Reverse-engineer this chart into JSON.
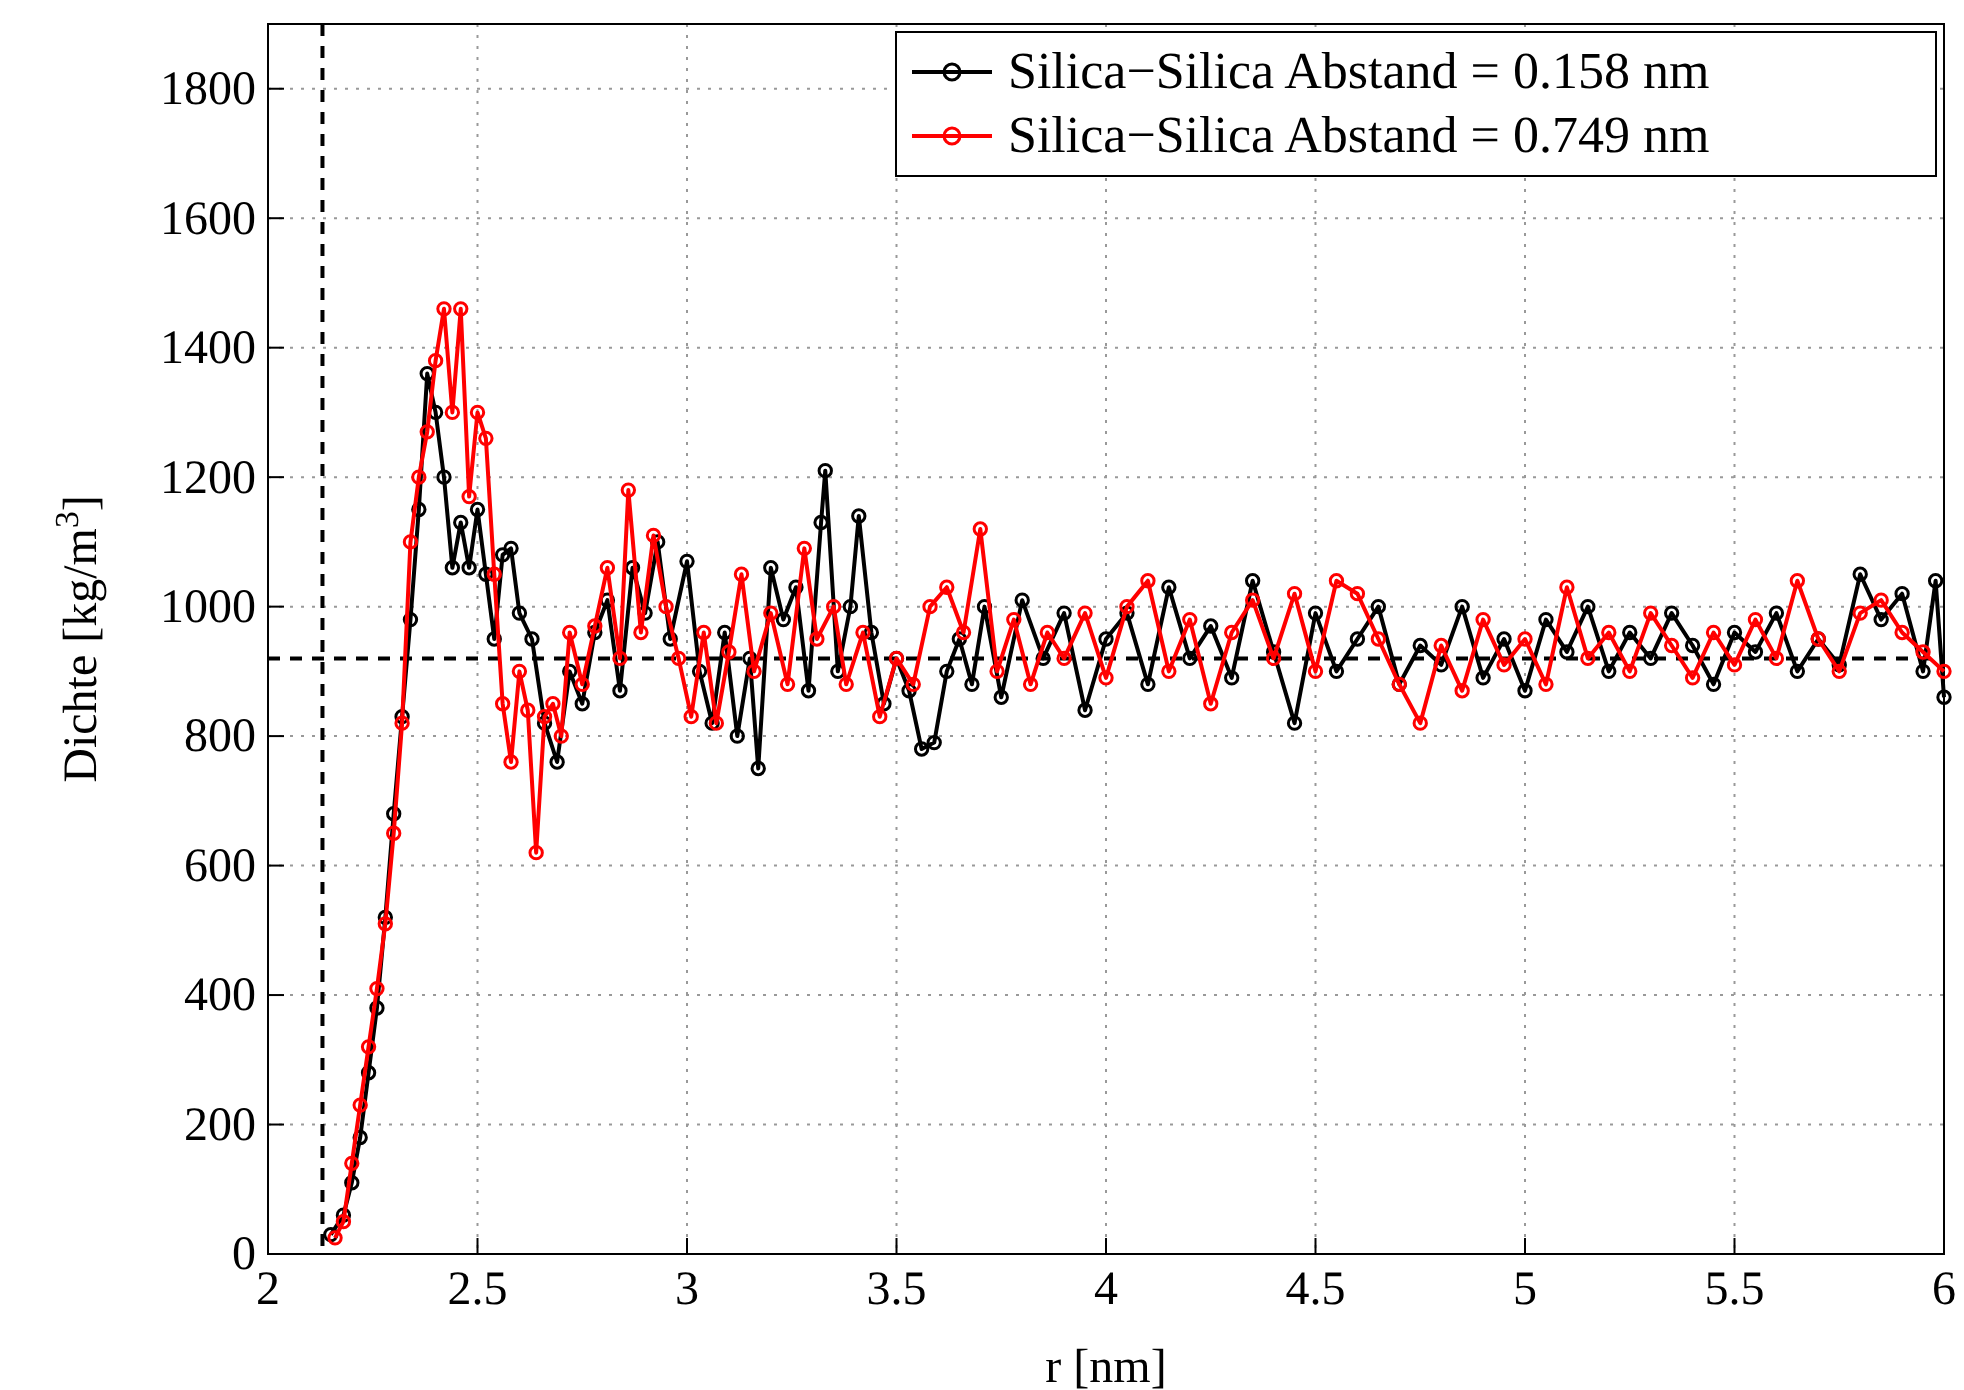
{
  "chart_data": {
    "type": "line",
    "xlabel": "r [nm]",
    "ylabel": "Dichte [kg/m$^{3}$]",
    "xlim": [
      2,
      6
    ],
    "xticks": [
      2,
      2.5,
      3,
      3.5,
      4,
      4.5,
      5,
      5.5,
      6
    ],
    "ylim": [
      0,
      1900
    ],
    "yticks": [
      0,
      200,
      400,
      600,
      800,
      1000,
      1200,
      1400,
      1600,
      1800
    ],
    "grid": true,
    "legend": "top right",
    "marker": "circle",
    "line_style": "solid",
    "ref_lines": [
      {
        "axis": "x",
        "value": 2.13,
        "line_style": "dashed",
        "color": "#000000"
      },
      {
        "axis": "y",
        "value": 920,
        "line_style": "dashed",
        "color": "#000000"
      }
    ],
    "series": [
      {
        "name": "Silica−Silica Abstand = 0.158 nm",
        "color": "#000000",
        "x": [
          2.15,
          2.18,
          2.2,
          2.22,
          2.24,
          2.26,
          2.28,
          2.3,
          2.32,
          2.34,
          2.36,
          2.38,
          2.4,
          2.42,
          2.44,
          2.46,
          2.48,
          2.5,
          2.52,
          2.54,
          2.56,
          2.58,
          2.6,
          2.63,
          2.66,
          2.69,
          2.72,
          2.75,
          2.78,
          2.81,
          2.84,
          2.87,
          2.9,
          2.93,
          2.96,
          3,
          3.03,
          3.06,
          3.09,
          3.12,
          3.15,
          3.17,
          3.2,
          3.23,
          3.26,
          3.29,
          3.32,
          3.33,
          3.36,
          3.39,
          3.41,
          3.44,
          3.47,
          3.5,
          3.53,
          3.56,
          3.59,
          3.62,
          3.65,
          3.68,
          3.71,
          3.75,
          3.8,
          3.85,
          3.9,
          3.95,
          4,
          4.05,
          4.1,
          4.15,
          4.2,
          4.25,
          4.3,
          4.35,
          4.4,
          4.45,
          4.5,
          4.55,
          4.6,
          4.65,
          4.7,
          4.75,
          4.8,
          4.85,
          4.9,
          4.95,
          5,
          5.05,
          5.1,
          5.15,
          5.2,
          5.25,
          5.3,
          5.35,
          5.4,
          5.45,
          5.5,
          5.55,
          5.6,
          5.65,
          5.7,
          5.75,
          5.8,
          5.85,
          5.9,
          5.95,
          5.98,
          6
        ],
        "values": [
          30,
          60,
          110,
          180,
          280,
          380,
          520,
          680,
          830,
          980,
          1150,
          1360,
          1300,
          1200,
          1060,
          1130,
          1060,
          1150,
          1050,
          950,
          1080,
          1090,
          990,
          950,
          820,
          760,
          900,
          850,
          960,
          1010,
          870,
          1060,
          990,
          1100,
          950,
          1070,
          900,
          820,
          960,
          800,
          920,
          750,
          1060,
          980,
          1030,
          870,
          1130,
          1210,
          900,
          1000,
          1140,
          960,
          850,
          920,
          870,
          780,
          790,
          900,
          950,
          880,
          1000,
          860,
          1010,
          920,
          990,
          840,
          950,
          990,
          880,
          1030,
          920,
          970,
          890,
          1040,
          930,
          820,
          990,
          900,
          950,
          1000,
          880,
          940,
          910,
          1000,
          890,
          950,
          870,
          980,
          930,
          1000,
          900,
          960,
          920,
          990,
          940,
          880,
          960,
          930,
          990,
          900,
          950,
          910,
          1050,
          980,
          1020,
          900,
          1040,
          860
        ]
      },
      {
        "name": "Silica−Silica Abstand = 0.749 nm",
        "color": "#ff0000",
        "x": [
          2.16,
          2.18,
          2.2,
          2.22,
          2.24,
          2.26,
          2.28,
          2.3,
          2.32,
          2.34,
          2.36,
          2.38,
          2.4,
          2.42,
          2.44,
          2.46,
          2.48,
          2.5,
          2.52,
          2.54,
          2.56,
          2.58,
          2.6,
          2.62,
          2.64,
          2.66,
          2.68,
          2.7,
          2.72,
          2.75,
          2.78,
          2.81,
          2.84,
          2.86,
          2.89,
          2.92,
          2.95,
          2.98,
          3.01,
          3.04,
          3.07,
          3.1,
          3.13,
          3.16,
          3.2,
          3.24,
          3.28,
          3.31,
          3.35,
          3.38,
          3.42,
          3.46,
          3.5,
          3.54,
          3.58,
          3.62,
          3.66,
          3.7,
          3.74,
          3.78,
          3.82,
          3.86,
          3.9,
          3.95,
          4,
          4.05,
          4.1,
          4.15,
          4.2,
          4.25,
          4.3,
          4.35,
          4.4,
          4.45,
          4.5,
          4.55,
          4.6,
          4.65,
          4.7,
          4.75,
          4.8,
          4.85,
          4.9,
          4.95,
          5,
          5.05,
          5.1,
          5.15,
          5.2,
          5.25,
          5.3,
          5.35,
          5.4,
          5.45,
          5.5,
          5.55,
          5.6,
          5.65,
          5.7,
          5.75,
          5.8,
          5.85,
          5.9,
          5.95,
          6
        ],
        "values": [
          25,
          50,
          140,
          230,
          320,
          410,
          510,
          650,
          820,
          1100,
          1200,
          1270,
          1380,
          1460,
          1300,
          1460,
          1170,
          1300,
          1260,
          1050,
          850,
          760,
          900,
          840,
          620,
          830,
          850,
          800,
          960,
          880,
          970,
          1060,
          920,
          1180,
          960,
          1110,
          1000,
          920,
          830,
          960,
          820,
          930,
          1050,
          900,
          990,
          880,
          1090,
          950,
          1000,
          880,
          960,
          830,
          920,
          880,
          1000,
          1030,
          960,
          1120,
          900,
          980,
          880,
          960,
          920,
          990,
          890,
          1000,
          1040,
          900,
          980,
          850,
          960,
          1010,
          920,
          1020,
          900,
          1040,
          1020,
          950,
          880,
          820,
          940,
          870,
          980,
          910,
          950,
          880,
          1030,
          920,
          960,
          900,
          990,
          940,
          890,
          960,
          910,
          980,
          920,
          1040,
          950,
          900,
          990,
          1010,
          960,
          930,
          900
        ]
      }
    ]
  }
}
